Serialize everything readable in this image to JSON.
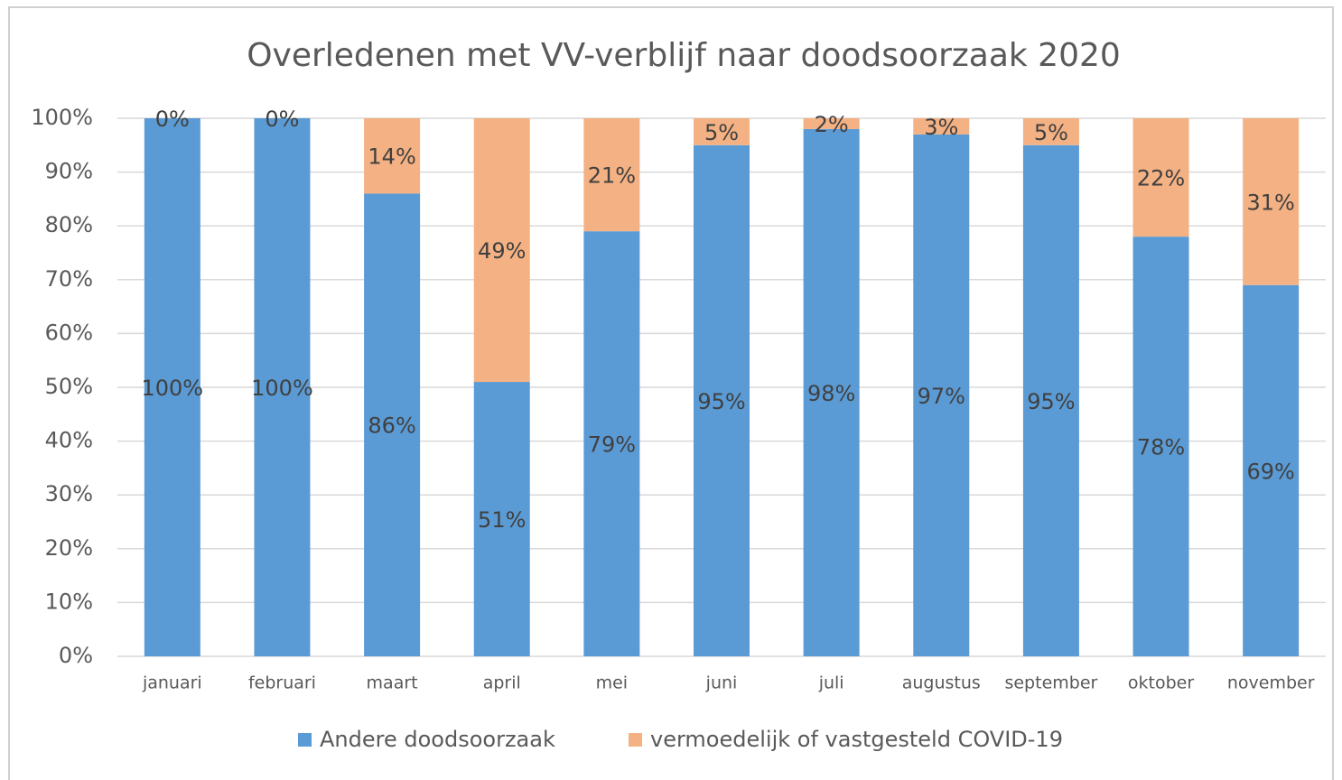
{
  "chart_data": {
    "type": "stacked_bar_100",
    "title": "Overledenen met VV-verblijf naar doodsoorzaak 2020",
    "categories": [
      "januari",
      "februari",
      "maart",
      "april",
      "mei",
      "juni",
      "juli",
      "augustus",
      "september",
      "oktober",
      "november"
    ],
    "series": [
      {
        "name": "Andere doodsoorzaak",
        "color": "#5b9bd5",
        "values": [
          100,
          100,
          86,
          51,
          79,
          95,
          98,
          97,
          95,
          78,
          69
        ],
        "value_labels": [
          "100%",
          "100%",
          "86%",
          "51%",
          "79%",
          "95%",
          "98%",
          "97%",
          "95%",
          "78%",
          "69%"
        ]
      },
      {
        "name": "vermoedelijk of vastgesteld COVID-19",
        "color": "#f4b183",
        "values": [
          0,
          0,
          14,
          49,
          21,
          5,
          2,
          3,
          5,
          22,
          31
        ],
        "value_labels": [
          "0%",
          "0%",
          "14%",
          "49%",
          "21%",
          "5%",
          "2%",
          "3%",
          "5%",
          "22%",
          "31%"
        ]
      }
    ],
    "ylim": [
      0,
      100
    ],
    "yticks": [
      {
        "value": 0,
        "label": "0%"
      },
      {
        "value": 10,
        "label": "10%"
      },
      {
        "value": 20,
        "label": "20%"
      },
      {
        "value": 30,
        "label": "30%"
      },
      {
        "value": 40,
        "label": "40%"
      },
      {
        "value": 50,
        "label": "50%"
      },
      {
        "value": 60,
        "label": "60%"
      },
      {
        "value": 70,
        "label": "70%"
      },
      {
        "value": 80,
        "label": "80%"
      },
      {
        "value": 90,
        "label": "90%"
      },
      {
        "value": 100,
        "label": "100%"
      }
    ],
    "grid": true,
    "legend": "bottom"
  }
}
